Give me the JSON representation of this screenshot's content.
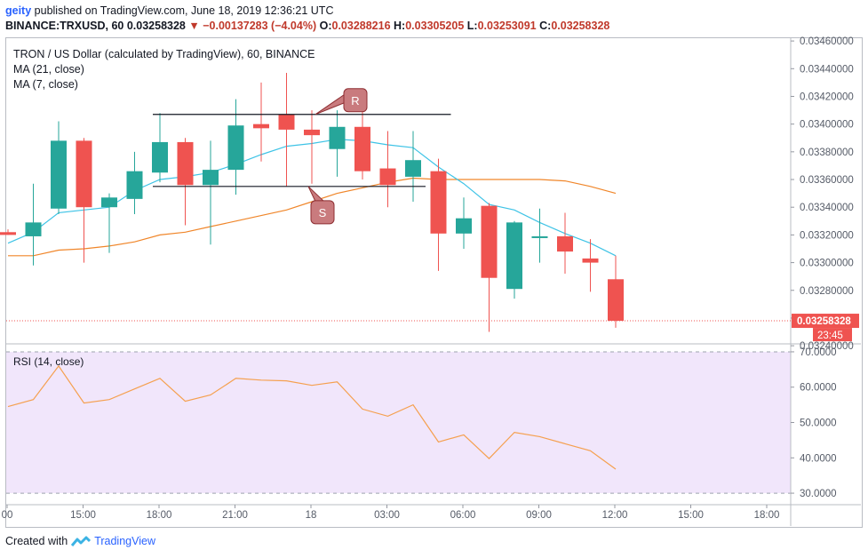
{
  "header": {
    "user": "geity",
    "published_text": "published on TradingView.com, June 18, 2019 12:36:21 UTC",
    "symbol_line": "BINANCE:TRXUSD, 60",
    "price": "0.03258328",
    "arrow": "▼",
    "change": "−0.00137283 (−4.04%)",
    "o_label": "O:",
    "o_value": "0.03288216",
    "h_label": "H:",
    "h_value": "0.03305205",
    "l_label": "L:",
    "l_value": "0.03253091",
    "c_label": "C:",
    "c_value": "0.03258328"
  },
  "footer": {
    "created": "Created with",
    "brand": "TradingView"
  },
  "colors": {
    "up": "#26a69a",
    "down": "#ef5350",
    "ma21": "#f0862a",
    "ma7": "#3ec3e6",
    "rsi_line": "#f5a04f",
    "rsi_band": "#f1e6fb",
    "price_badge": "#ef5350"
  },
  "chart_data": [
    {
      "type": "candlestick",
      "title": "TRON / US Dollar (calculated by TradingView), 60, BINANCE",
      "legend": [
        "MA (21, close)",
        "MA (7, close)"
      ],
      "ylim": [
        0.03242,
        0.03462
      ],
      "y_ticks": [
        "0.03460000",
        "0.03440000",
        "0.03420000",
        "0.03400000",
        "0.03380000",
        "0.03360000",
        "0.03340000",
        "0.03320000",
        "0.03300000",
        "0.03280000",
        "0.03260000",
        "0.03240000"
      ],
      "x_ticks": [
        "00",
        "15:00",
        "18:00",
        "21:00",
        "18",
        "03:00",
        "06:00",
        "09:00",
        "12:00",
        "15:00",
        "18:00"
      ],
      "last_price_label": "0.03258328",
      "countdown_label": "23:45",
      "candles": [
        {
          "o": 0.03322,
          "h": 0.03324,
          "l": 0.0332,
          "c": 0.0332
        },
        {
          "o": 0.03319,
          "h": 0.03357,
          "l": 0.03298,
          "c": 0.03329
        },
        {
          "o": 0.03339,
          "h": 0.03402,
          "l": 0.03335,
          "c": 0.03388
        },
        {
          "o": 0.03388,
          "h": 0.0339,
          "l": 0.033,
          "c": 0.0334
        },
        {
          "o": 0.0334,
          "h": 0.0335,
          "l": 0.03307,
          "c": 0.03347
        },
        {
          "o": 0.03346,
          "h": 0.0338,
          "l": 0.03335,
          "c": 0.03366
        },
        {
          "o": 0.03365,
          "h": 0.03408,
          "l": 0.03358,
          "c": 0.03387
        },
        {
          "o": 0.03387,
          "h": 0.0339,
          "l": 0.03327,
          "c": 0.03356
        },
        {
          "o": 0.03356,
          "h": 0.03388,
          "l": 0.03313,
          "c": 0.03367
        },
        {
          "o": 0.03367,
          "h": 0.03418,
          "l": 0.03349,
          "c": 0.03399
        },
        {
          "o": 0.034,
          "h": 0.0343,
          "l": 0.03373,
          "c": 0.03397
        },
        {
          "o": 0.03407,
          "h": 0.03437,
          "l": 0.03355,
          "c": 0.03396
        },
        {
          "o": 0.03396,
          "h": 0.0341,
          "l": 0.03357,
          "c": 0.03392
        },
        {
          "o": 0.03382,
          "h": 0.0341,
          "l": 0.03362,
          "c": 0.03398
        },
        {
          "o": 0.03398,
          "h": 0.0342,
          "l": 0.0336,
          "c": 0.03366
        },
        {
          "o": 0.03368,
          "h": 0.03395,
          "l": 0.0334,
          "c": 0.03356
        },
        {
          "o": 0.03362,
          "h": 0.03395,
          "l": 0.03344,
          "c": 0.03374
        },
        {
          "o": 0.03366,
          "h": 0.03375,
          "l": 0.03294,
          "c": 0.03321
        },
        {
          "o": 0.03321,
          "h": 0.03347,
          "l": 0.0331,
          "c": 0.03332
        },
        {
          "o": 0.03341,
          "h": 0.03343,
          "l": 0.0325,
          "c": 0.03289
        },
        {
          "o": 0.03281,
          "h": 0.0333,
          "l": 0.03274,
          "c": 0.03329
        },
        {
          "o": 0.03319,
          "h": 0.03339,
          "l": 0.033,
          "c": 0.03319
        },
        {
          "o": 0.03319,
          "h": 0.03336,
          "l": 0.03292,
          "c": 0.03308
        },
        {
          "o": 0.03303,
          "h": 0.03317,
          "l": 0.03279,
          "c": 0.033
        },
        {
          "o": 0.03288,
          "h": 0.03305,
          "l": 0.03253,
          "c": 0.03258
        }
      ],
      "ma21": [
        0.03305,
        0.03305,
        0.03309,
        0.0331,
        0.03312,
        0.03315,
        0.0332,
        0.03322,
        0.03326,
        0.0333,
        0.03334,
        0.03338,
        0.03344,
        0.0335,
        0.03354,
        0.03358,
        0.03361,
        0.0336,
        0.0336,
        0.0336,
        0.0336,
        0.0336,
        0.03359,
        0.03355,
        0.0335
      ],
      "ma7": [
        0.03314,
        0.03322,
        0.03336,
        0.03338,
        0.0334,
        0.03352,
        0.0336,
        0.03362,
        0.03365,
        0.03371,
        0.03378,
        0.03384,
        0.03386,
        0.03389,
        0.03388,
        0.03385,
        0.03383,
        0.03369,
        0.03357,
        0.03342,
        0.03338,
        0.03329,
        0.03321,
        0.03314,
        0.03305
      ],
      "annotations": [
        {
          "label": "R",
          "kind": "resistance",
          "price": 0.03407,
          "from_index": 6,
          "to_index": 17
        },
        {
          "label": "S",
          "kind": "support",
          "price": 0.03355,
          "from_index": 6,
          "to_index": 16
        }
      ]
    },
    {
      "type": "line",
      "title": "RSI (14, close)",
      "ylim": [
        27,
        72
      ],
      "y_ticks": [
        "70.0000",
        "60.0000",
        "50.0000",
        "40.0000",
        "30.0000"
      ],
      "band": [
        30,
        70
      ],
      "values": [
        54.5,
        56.5,
        66.0,
        55.5,
        56.5,
        59.5,
        62.5,
        56.0,
        57.8,
        62.5,
        62.0,
        61.8,
        60.5,
        61.5,
        53.8,
        51.8,
        55.0,
        44.5,
        46.5,
        39.8,
        47.2,
        46.0,
        44.0,
        42.0,
        36.8
      ]
    }
  ]
}
